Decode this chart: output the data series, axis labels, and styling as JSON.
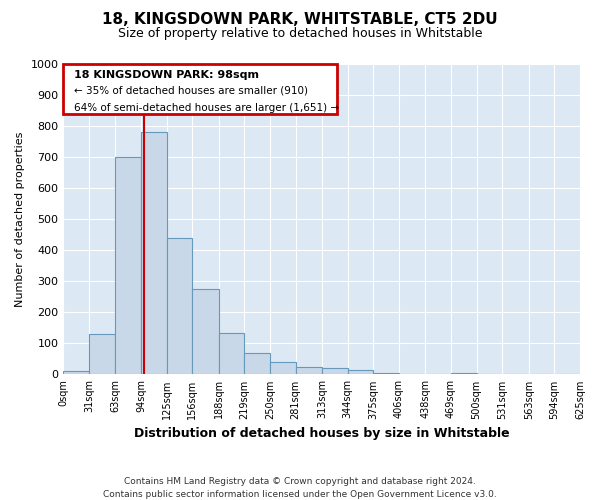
{
  "title": "18, KINGSDOWN PARK, WHITSTABLE, CT5 2DU",
  "subtitle": "Size of property relative to detached houses in Whitstable",
  "xlabel": "Distribution of detached houses by size in Whitstable",
  "ylabel": "Number of detached properties",
  "bin_edges": [
    0,
    31,
    63,
    94,
    125,
    156,
    188,
    219,
    250,
    281,
    313,
    344,
    375,
    406,
    438,
    469,
    500,
    531,
    563,
    594,
    625
  ],
  "bar_heights": [
    10,
    130,
    700,
    780,
    440,
    275,
    135,
    70,
    40,
    25,
    20,
    15,
    5,
    0,
    0,
    5,
    0,
    0,
    0,
    0
  ],
  "bar_color": "#c8d8e8",
  "bar_edge_color": "#6699bb",
  "bar_edge_width": 0.8,
  "fig_bg_color": "#ffffff",
  "plot_bg_color": "#dce8f3",
  "grid_color": "#ffffff",
  "property_line_x": 98,
  "property_line_color": "#cc0000",
  "ylim": [
    0,
    1000
  ],
  "yticks": [
    0,
    100,
    200,
    300,
    400,
    500,
    600,
    700,
    800,
    900,
    1000
  ],
  "xtick_labels": [
    "0sqm",
    "31sqm",
    "63sqm",
    "94sqm",
    "125sqm",
    "156sqm",
    "188sqm",
    "219sqm",
    "250sqm",
    "281sqm",
    "313sqm",
    "344sqm",
    "375sqm",
    "406sqm",
    "438sqm",
    "469sqm",
    "500sqm",
    "531sqm",
    "563sqm",
    "594sqm",
    "625sqm"
  ],
  "annotation_title": "18 KINGSDOWN PARK: 98sqm",
  "annotation_line1": "← 35% of detached houses are smaller (910)",
  "annotation_line2": "64% of semi-detached houses are larger (1,651) →",
  "annotation_box_color": "#cc0000",
  "footer_line1": "Contains HM Land Registry data © Crown copyright and database right 2024.",
  "footer_line2": "Contains public sector information licensed under the Open Government Licence v3.0."
}
